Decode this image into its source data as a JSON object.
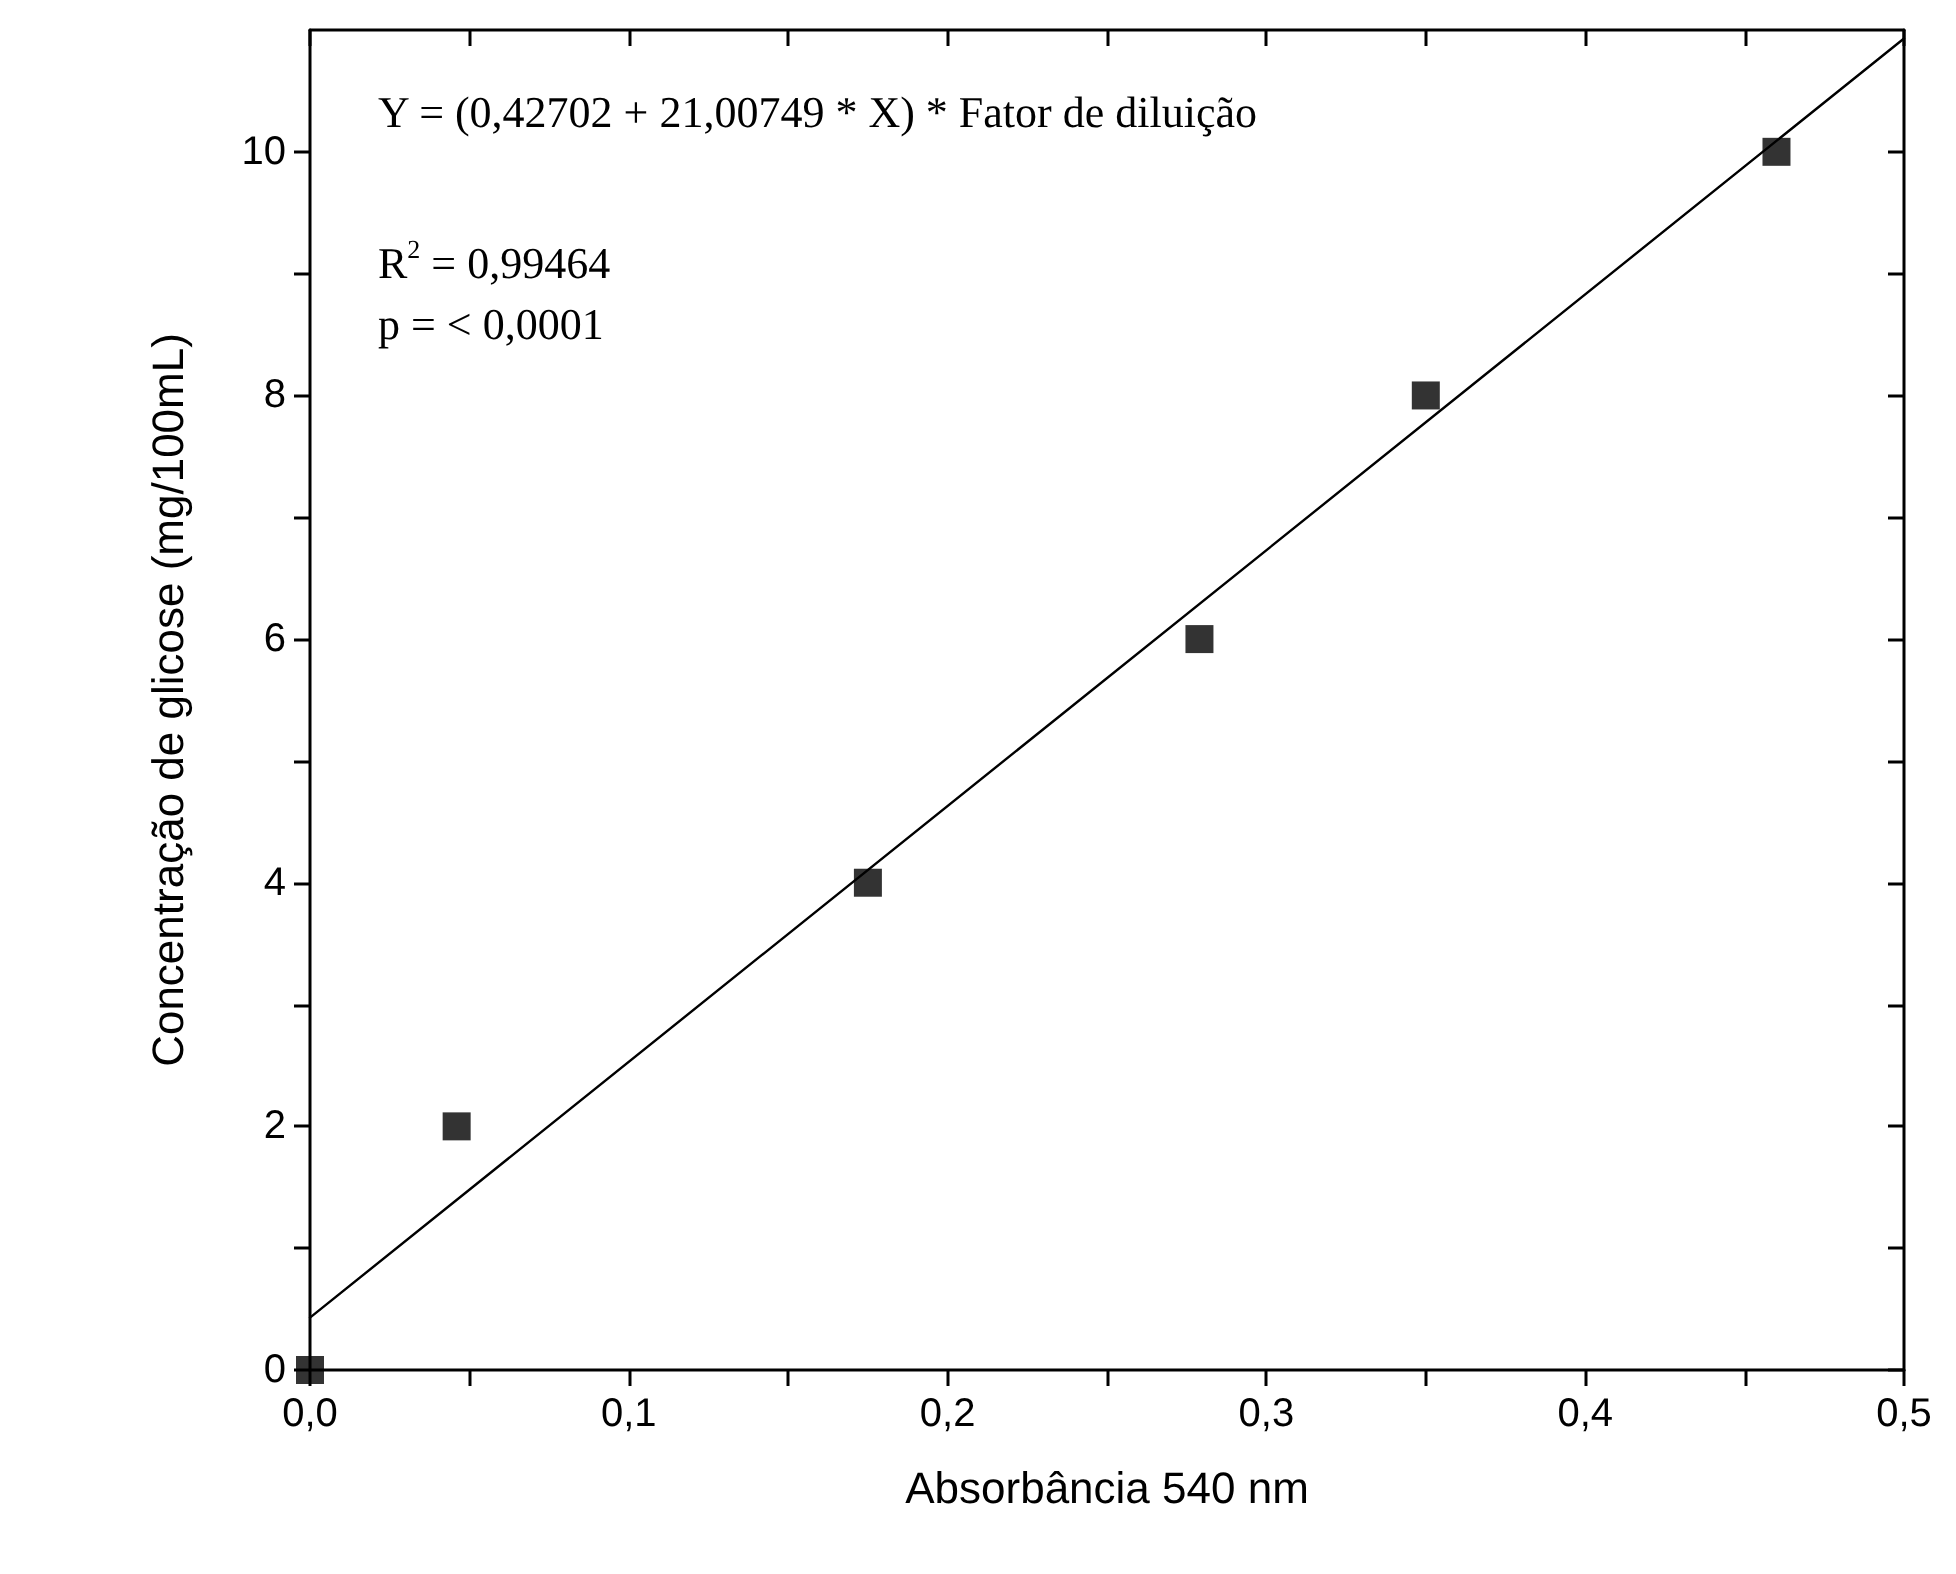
{
  "chart_data": {
    "type": "scatter",
    "xlabel": "Absorbância 540 nm",
    "ylabel": "Concentração de glicose (mg/100mL)",
    "xlim": [
      0,
      0.5
    ],
    "ylim": [
      0,
      11
    ],
    "xticks": [
      {
        "value": 0,
        "label": "0,0"
      },
      {
        "value": 0.05,
        "label": null
      },
      {
        "value": 0.1,
        "label": "0,1"
      },
      {
        "value": 0.15,
        "label": null
      },
      {
        "value": 0.2,
        "label": "0,2"
      },
      {
        "value": 0.25,
        "label": null
      },
      {
        "value": 0.3,
        "label": "0,3"
      },
      {
        "value": 0.35,
        "label": null
      },
      {
        "value": 0.4,
        "label": "0,4"
      },
      {
        "value": 0.45,
        "label": null
      },
      {
        "value": 0.5,
        "label": "0,5"
      }
    ],
    "yticks": [
      0,
      {
        "value": 1,
        "label": null
      },
      2,
      {
        "value": 3,
        "label": null
      },
      4,
      {
        "value": 5,
        "label": null
      },
      6,
      {
        "value": 7,
        "label": null
      },
      8,
      {
        "value": 9,
        "label": null
      },
      10
    ],
    "grid": false,
    "marker": "square",
    "annotations": [
      "Y = (0,42702 + 21,00749 * X) * Fator de diluição",
      "R$^{2}$ = 0,99464",
      "p = < 0,0001"
    ],
    "series": [
      {
        "type": "scatter",
        "color": "#000000",
        "x": [
          0,
          0.046,
          0.175,
          0.279,
          0.35,
          0.46
        ],
        "values": [
          0,
          2,
          4,
          6,
          8,
          10
        ]
      },
      {
        "type": "line",
        "color": "#000000",
        "line_style": "solid",
        "marker": "none",
        "x": [
          0,
          0.5
        ],
        "values": [
          0.43,
          10.93
        ]
      }
    ]
  }
}
